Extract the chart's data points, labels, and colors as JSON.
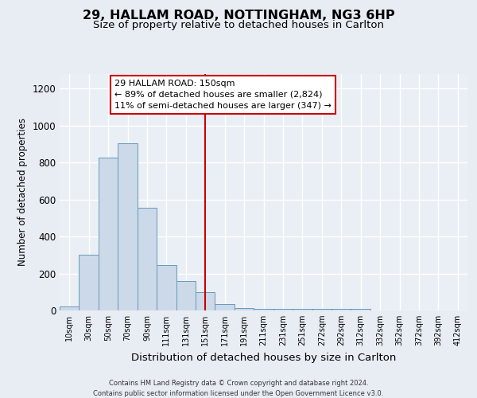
{
  "title": "29, HALLAM ROAD, NOTTINGHAM, NG3 6HP",
  "subtitle": "Size of property relative to detached houses in Carlton",
  "xlabel": "Distribution of detached houses by size in Carlton",
  "ylabel": "Number of detached properties",
  "bar_labels": [
    "10sqm",
    "30sqm",
    "50sqm",
    "70sqm",
    "90sqm",
    "111sqm",
    "131sqm",
    "151sqm",
    "171sqm",
    "191sqm",
    "211sqm",
    "231sqm",
    "251sqm",
    "272sqm",
    "292sqm",
    "312sqm",
    "332sqm",
    "352sqm",
    "372sqm",
    "392sqm",
    "412sqm"
  ],
  "bar_heights": [
    20,
    300,
    825,
    905,
    555,
    245,
    160,
    100,
    35,
    15,
    10,
    10,
    10,
    10,
    10,
    10,
    0,
    0,
    0,
    0,
    0
  ],
  "bar_color": "#ccd9e8",
  "bar_edge_color": "#6699bb",
  "vline_x": 7,
  "vline_color": "#cc0000",
  "ylim": [
    0,
    1280
  ],
  "yticks": [
    0,
    200,
    400,
    600,
    800,
    1000,
    1200
  ],
  "annotation_title": "29 HALLAM ROAD: 150sqm",
  "annotation_line1": "← 89% of detached houses are smaller (2,824)",
  "annotation_line2": "11% of semi-detached houses are larger (347) →",
  "footer_line1": "Contains HM Land Registry data © Crown copyright and database right 2024.",
  "footer_line2": "Contains public sector information licensed under the Open Government Licence v3.0.",
  "bg_color": "#e8edf4",
  "plot_bg_color": "#eaeff5",
  "grid_color": "#ffffff",
  "title_fontsize": 11.5,
  "subtitle_fontsize": 9.5,
  "footer_fontsize": 6.0
}
